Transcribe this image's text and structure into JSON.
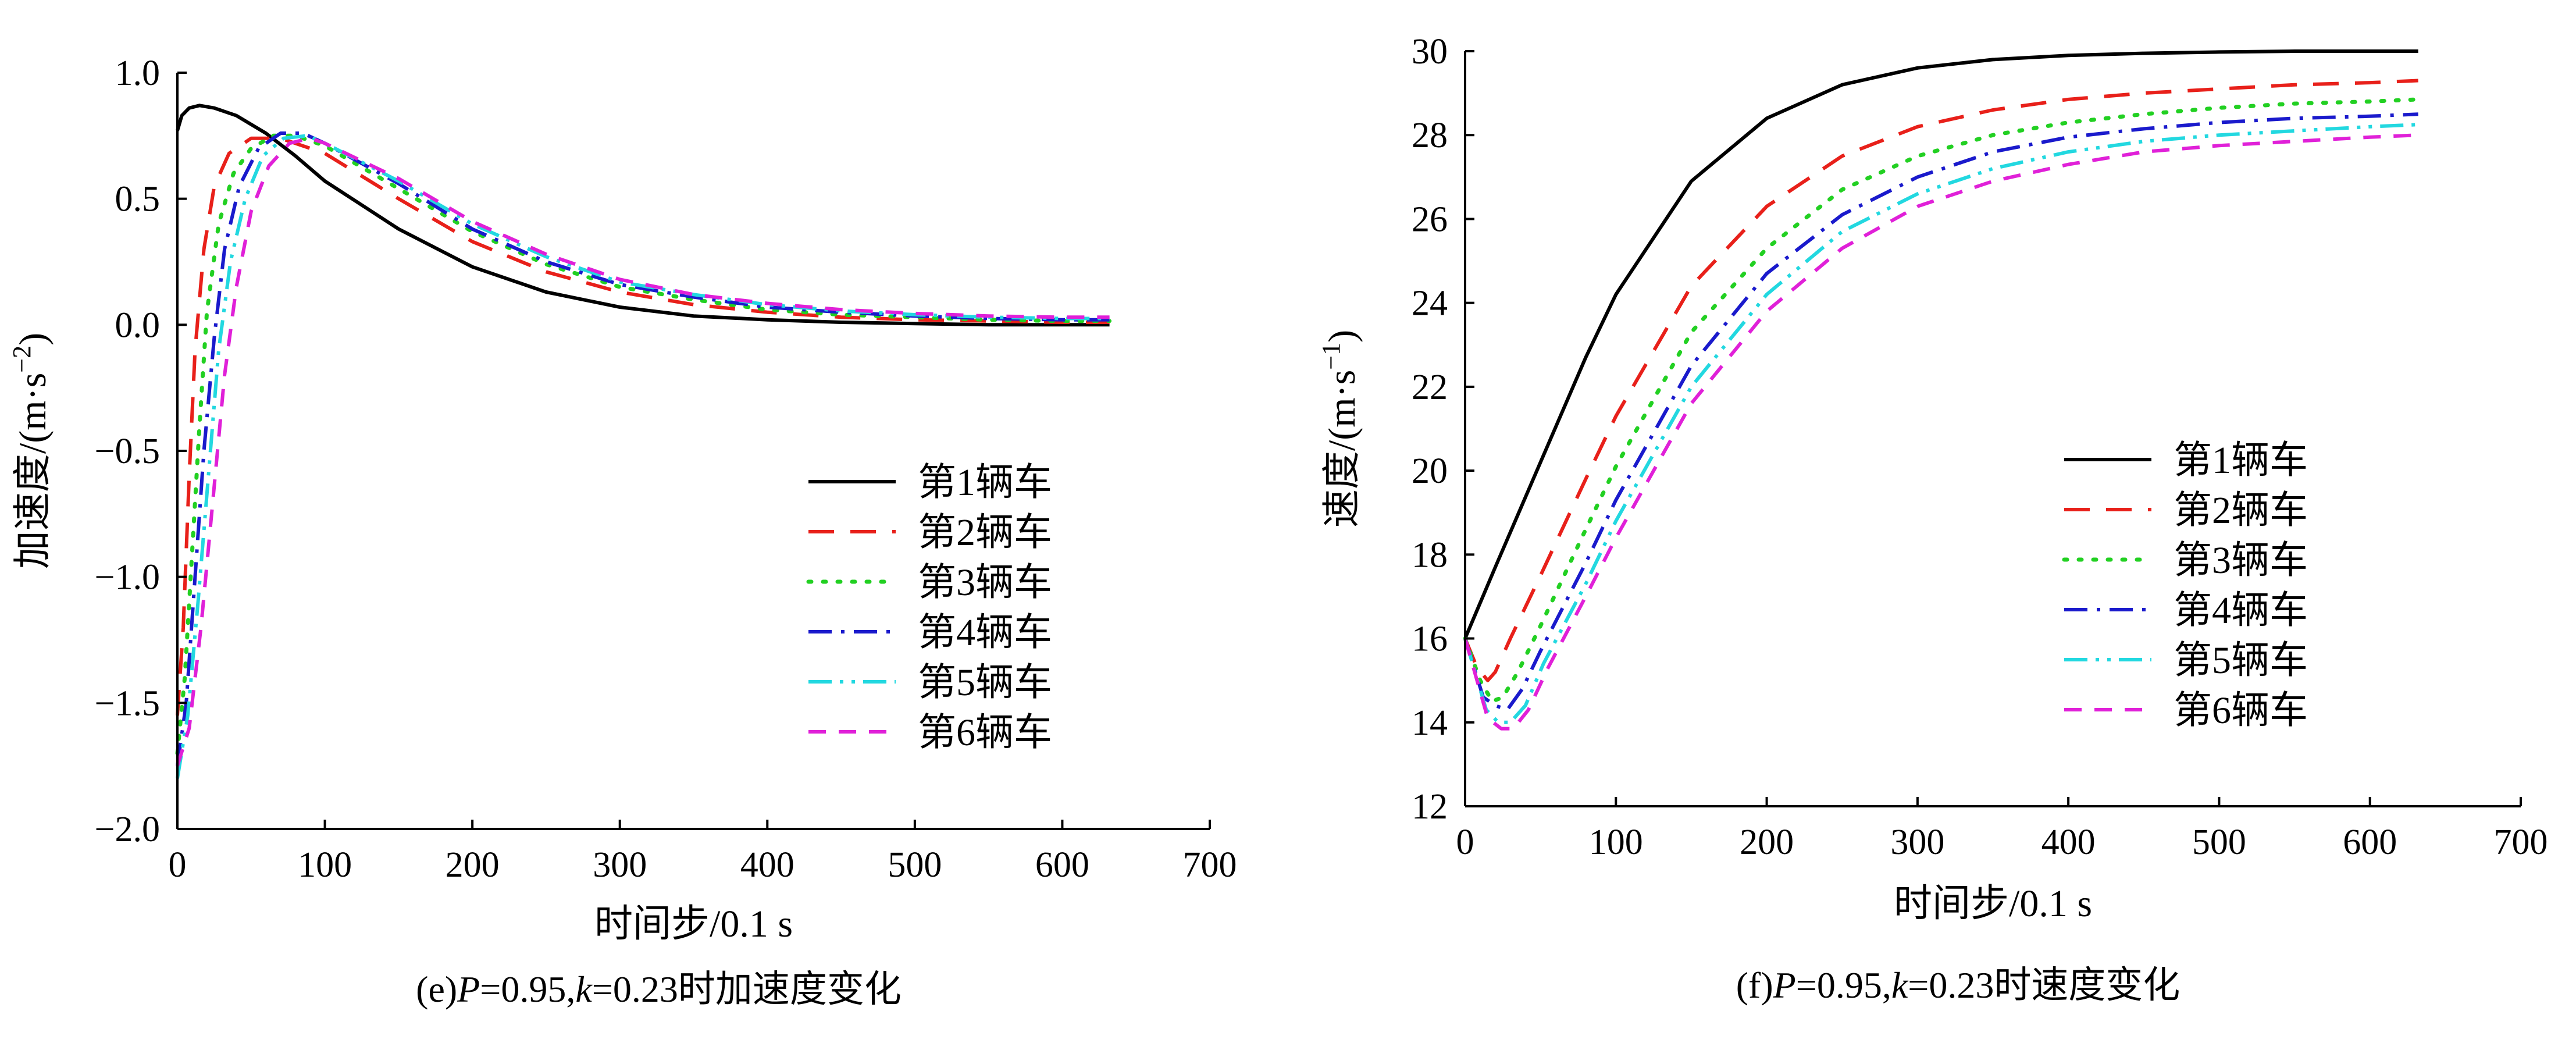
{
  "chart_data": [
    {
      "type": "line",
      "caption_prefix": "(e)",
      "caption_p": "P",
      "caption_mid": "=0.95,",
      "caption_k": "k",
      "caption_suffix": "=0.23时加速度变化",
      "xlabel": "时间步/0.1 s",
      "ylabel_main": "加速度/(m·s",
      "ylabel_sup": "−2",
      "ylabel_end": ")",
      "xlim": [
        0,
        700
      ],
      "ylim": [
        -2.0,
        1.0
      ],
      "xticks": [
        0,
        100,
        200,
        300,
        400,
        500,
        600,
        700
      ],
      "xtick_labels": [
        "0",
        "100",
        "200",
        "300",
        "400",
        "500",
        "600",
        "700"
      ],
      "yticks": [
        1.0,
        0.5,
        0.0,
        -0.5,
        -1.0,
        -1.5,
        -2.0
      ],
      "ytick_labels": [
        "1.0",
        "0.5",
        "0.0",
        "−0.5",
        "−1.0",
        "−1.5",
        "−2.0"
      ],
      "grid": false,
      "legend_position": "lower-right",
      "series": [
        {
          "name": "第1辆车",
          "color": "#000000",
          "dash": "solid",
          "x": [
            0,
            3,
            8,
            15,
            25,
            40,
            60,
            80,
            100,
            150,
            200,
            250,
            300,
            350,
            400,
            450,
            500,
            550,
            600,
            632
          ],
          "y": [
            0.77,
            0.83,
            0.86,
            0.87,
            0.86,
            0.83,
            0.76,
            0.67,
            0.57,
            0.38,
            0.23,
            0.13,
            0.07,
            0.035,
            0.02,
            0.01,
            0.005,
            0.0,
            0.0,
            0.0
          ]
        },
        {
          "name": "第2辆车",
          "color": "#e8201a",
          "dash": "dashed",
          "x": [
            0,
            4,
            8,
            12,
            18,
            25,
            35,
            50,
            70,
            100,
            150,
            200,
            250,
            300,
            350,
            400,
            450,
            500,
            550,
            600,
            632
          ],
          "y": [
            -1.55,
            -1.2,
            -0.6,
            -0.1,
            0.3,
            0.55,
            0.68,
            0.74,
            0.74,
            0.68,
            0.5,
            0.33,
            0.21,
            0.13,
            0.08,
            0.05,
            0.03,
            0.02,
            0.015,
            0.01,
            0.01
          ]
        },
        {
          "name": "第3辆车",
          "color": "#22d022",
          "dash": "dotted",
          "x": [
            0,
            5,
            10,
            15,
            20,
            28,
            38,
            50,
            65,
            80,
            100,
            150,
            200,
            250,
            300,
            350,
            400,
            450,
            500,
            550,
            600,
            632
          ],
          "y": [
            -1.7,
            -1.4,
            -0.9,
            -0.4,
            0.05,
            0.4,
            0.6,
            0.7,
            0.75,
            0.75,
            0.71,
            0.54,
            0.37,
            0.24,
            0.15,
            0.1,
            0.06,
            0.04,
            0.03,
            0.02,
            0.015,
            0.015
          ]
        },
        {
          "name": "第4辆车",
          "color": "#1a1acc",
          "dash": "dashdot",
          "x": [
            0,
            6,
            12,
            18,
            25,
            32,
            42,
            55,
            70,
            85,
            100,
            150,
            200,
            250,
            300,
            350,
            400,
            450,
            500,
            550,
            600,
            632
          ],
          "y": [
            -1.75,
            -1.5,
            -1.0,
            -0.5,
            -0.05,
            0.3,
            0.55,
            0.7,
            0.76,
            0.76,
            0.72,
            0.56,
            0.38,
            0.25,
            0.16,
            0.11,
            0.07,
            0.05,
            0.035,
            0.025,
            0.02,
            0.02
          ]
        },
        {
          "name": "第5辆车",
          "color": "#22d8e0",
          "dash": "dashdotdot",
          "x": [
            0,
            7,
            14,
            21,
            28,
            36,
            46,
            58,
            72,
            88,
            100,
            150,
            200,
            250,
            300,
            350,
            400,
            450,
            500,
            550,
            600,
            632
          ],
          "y": [
            -1.8,
            -1.55,
            -1.1,
            -0.6,
            -0.1,
            0.25,
            0.5,
            0.67,
            0.74,
            0.75,
            0.72,
            0.57,
            0.4,
            0.27,
            0.17,
            0.12,
            0.08,
            0.055,
            0.04,
            0.03,
            0.025,
            0.025
          ]
        },
        {
          "name": "第6辆车",
          "color": "#e020d8",
          "dash": "longdash",
          "x": [
            0,
            8,
            16,
            24,
            32,
            40,
            50,
            62,
            76,
            90,
            100,
            150,
            200,
            250,
            300,
            350,
            400,
            450,
            500,
            550,
            600,
            632
          ],
          "y": [
            -1.75,
            -1.6,
            -1.2,
            -0.7,
            -0.2,
            0.15,
            0.45,
            0.63,
            0.72,
            0.74,
            0.72,
            0.58,
            0.41,
            0.28,
            0.18,
            0.12,
            0.085,
            0.06,
            0.045,
            0.035,
            0.03,
            0.03
          ]
        }
      ]
    },
    {
      "type": "line",
      "caption_prefix": "(f)",
      "caption_p": "P",
      "caption_mid": "=0.95,",
      "caption_k": "k",
      "caption_suffix": "=0.23时速度变化",
      "xlabel": "时间步/0.1 s",
      "ylabel_main": "速度/(m·s",
      "ylabel_sup": "−1",
      "ylabel_end": ")",
      "xlim": [
        0,
        700
      ],
      "ylim": [
        12,
        30
      ],
      "xticks": [
        0,
        100,
        200,
        300,
        400,
        500,
        600,
        700
      ],
      "xtick_labels": [
        "0",
        "100",
        "200",
        "300",
        "400",
        "500",
        "600",
        "700"
      ],
      "yticks": [
        30,
        28,
        26,
        24,
        22,
        20,
        18,
        16,
        14,
        12
      ],
      "ytick_labels": [
        "30",
        "28",
        "26",
        "24",
        "22",
        "20",
        "18",
        "16",
        "14",
        "12"
      ],
      "grid": false,
      "legend_position": "lower-right",
      "series": [
        {
          "name": "第1辆车",
          "color": "#000000",
          "dash": "solid",
          "x": [
            0,
            20,
            50,
            80,
            100,
            150,
            200,
            250,
            300,
            350,
            400,
            450,
            500,
            550,
            600,
            632
          ],
          "y": [
            16.0,
            17.7,
            20.2,
            22.7,
            24.2,
            26.9,
            28.4,
            29.2,
            29.6,
            29.8,
            29.9,
            29.95,
            29.98,
            30.0,
            30.0,
            30.0
          ]
        },
        {
          "name": "第2辆车",
          "color": "#e8201a",
          "dash": "dashed",
          "x": [
            0,
            8,
            15,
            20,
            30,
            50,
            80,
            100,
            150,
            200,
            250,
            300,
            350,
            400,
            450,
            500,
            550,
            600,
            632
          ],
          "y": [
            16.0,
            15.3,
            15.0,
            15.2,
            16.0,
            17.5,
            19.8,
            21.3,
            24.4,
            26.3,
            27.5,
            28.2,
            28.6,
            28.85,
            29.0,
            29.1,
            29.2,
            29.25,
            29.3
          ]
        },
        {
          "name": "第3辆车",
          "color": "#22d022",
          "dash": "dotted",
          "x": [
            0,
            10,
            18,
            25,
            35,
            50,
            80,
            100,
            150,
            200,
            250,
            300,
            350,
            400,
            450,
            500,
            550,
            600,
            632
          ],
          "y": [
            16.0,
            15.0,
            14.5,
            14.6,
            15.2,
            16.3,
            18.6,
            20.1,
            23.3,
            25.3,
            26.7,
            27.5,
            28.0,
            28.3,
            28.5,
            28.65,
            28.75,
            28.8,
            28.85
          ]
        },
        {
          "name": "第4辆车",
          "color": "#1a1acc",
          "dash": "dashdot",
          "x": [
            0,
            12,
            20,
            28,
            38,
            50,
            80,
            100,
            150,
            200,
            250,
            300,
            350,
            400,
            450,
            500,
            550,
            600,
            632
          ],
          "y": [
            16.0,
            14.6,
            14.4,
            14.3,
            14.8,
            15.7,
            17.8,
            19.3,
            22.5,
            24.7,
            26.1,
            27.0,
            27.6,
            27.95,
            28.15,
            28.3,
            28.4,
            28.45,
            28.5
          ]
        },
        {
          "name": "第5辆车",
          "color": "#22d8e0",
          "dash": "dashdotdot",
          "x": [
            0,
            14,
            22,
            30,
            40,
            52,
            80,
            100,
            150,
            200,
            250,
            300,
            350,
            400,
            450,
            500,
            550,
            600,
            632
          ],
          "y": [
            16.0,
            14.3,
            14.0,
            14.0,
            14.4,
            15.4,
            17.3,
            18.8,
            22.0,
            24.2,
            25.7,
            26.6,
            27.2,
            27.6,
            27.85,
            28.0,
            28.1,
            28.2,
            28.25
          ]
        },
        {
          "name": "第6辆车",
          "color": "#e020d8",
          "dash": "longdash",
          "x": [
            0,
            15,
            24,
            32,
            42,
            55,
            80,
            100,
            150,
            200,
            250,
            300,
            350,
            400,
            450,
            500,
            550,
            600,
            632
          ],
          "y": [
            16.0,
            14.1,
            13.85,
            13.85,
            14.3,
            15.3,
            17.0,
            18.4,
            21.6,
            23.8,
            25.3,
            26.3,
            26.9,
            27.3,
            27.6,
            27.75,
            27.85,
            27.95,
            28.0
          ]
        }
      ]
    }
  ]
}
